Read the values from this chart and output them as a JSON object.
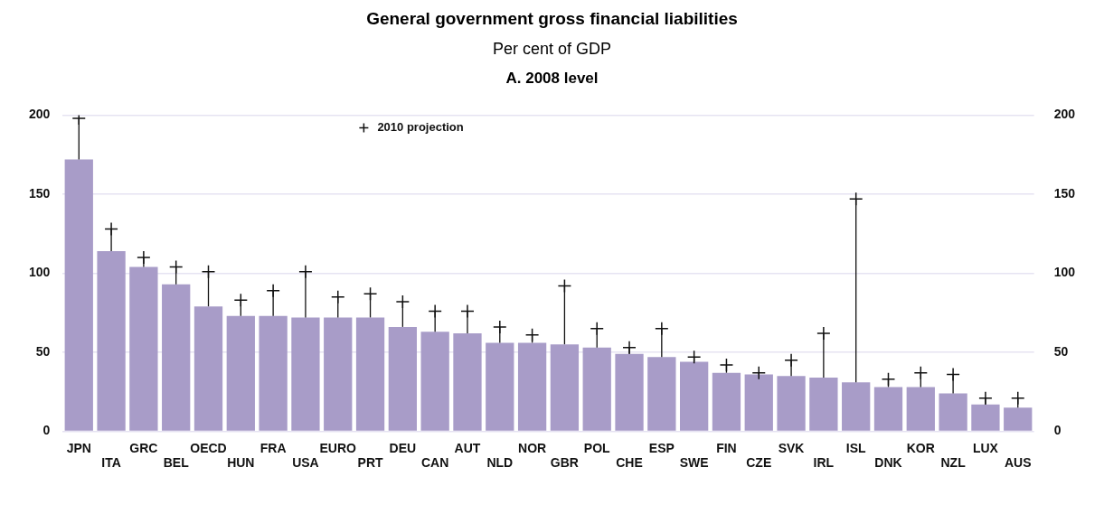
{
  "chart_data": {
    "type": "bar",
    "title": "General government gross financial liabilities",
    "subtitle": "Per cent of GDP",
    "annotations": [
      "A. 2008 level"
    ],
    "categories": [
      "JPN",
      "ITA",
      "GRC",
      "BEL",
      "OECD",
      "HUN",
      "FRA",
      "USA",
      "EURO",
      "PRT",
      "DEU",
      "CAN",
      "AUT",
      "NLD",
      "NOR",
      "GBR",
      "POL",
      "CHE",
      "ESP",
      "SWE",
      "FIN",
      "CZE",
      "SVK",
      "IRL",
      "ISL",
      "DNK",
      "KOR",
      "NZL",
      "LUX",
      "AUS"
    ],
    "series": [
      {
        "color": "#a89cc8",
        "values": [
          172,
          114,
          104,
          93,
          79,
          73,
          73,
          72,
          72,
          72,
          66,
          63,
          62,
          56,
          56,
          55,
          53,
          49,
          47,
          44,
          37,
          36,
          35,
          34,
          31,
          28,
          28,
          24,
          17,
          15
        ],
        "errors": [
          [
            172,
            198
          ],
          [
            114,
            128
          ],
          [
            104,
            110
          ],
          [
            93,
            104
          ],
          [
            79,
            101
          ],
          [
            73,
            83
          ],
          [
            73,
            89
          ],
          [
            72,
            101
          ],
          [
            72,
            85
          ],
          [
            72,
            87
          ],
          [
            66,
            82
          ],
          [
            63,
            76
          ],
          [
            62,
            76
          ],
          [
            56,
            66
          ],
          [
            56,
            61
          ],
          [
            55,
            92
          ],
          [
            53,
            65
          ],
          [
            49,
            53
          ],
          [
            47,
            65
          ],
          [
            44,
            47
          ],
          [
            37,
            42
          ],
          [
            36,
            37
          ],
          [
            35,
            45
          ],
          [
            34,
            62
          ],
          [
            31,
            147
          ],
          [
            28,
            33
          ],
          [
            28,
            37
          ],
          [
            24,
            36
          ],
          [
            17,
            21
          ],
          [
            15,
            21
          ]
        ]
      },
      {
        "type": "scatter",
        "name": "2010 projection",
        "color": "#111111",
        "marker": "cross",
        "x": [
          "JPN",
          "ITA",
          "GRC",
          "BEL",
          "OECD",
          "HUN",
          "FRA",
          "USA",
          "EURO",
          "PRT",
          "DEU",
          "CAN",
          "AUT",
          "NLD",
          "NOR",
          "GBR",
          "POL",
          "CHE",
          "ESP",
          "SWE",
          "FIN",
          "CZE",
          "SVK",
          "IRL",
          "ISL",
          "DNK",
          "KOR",
          "NZL",
          "LUX",
          "AUS"
        ],
        "values": [
          198,
          128,
          110,
          104,
          101,
          83,
          89,
          101,
          85,
          87,
          82,
          76,
          76,
          66,
          61,
          92,
          65,
          53,
          65,
          47,
          42,
          37,
          45,
          62,
          147,
          33,
          37,
          36,
          21,
          21
        ]
      }
    ],
    "ylim": [
      0,
      200
    ],
    "yticks": [
      0,
      50,
      100,
      150,
      200
    ],
    "y2lim": [
      0,
      200
    ],
    "y2ticks": [
      0,
      50,
      100,
      150,
      200
    ],
    "grid": "y",
    "legend": "top"
  }
}
